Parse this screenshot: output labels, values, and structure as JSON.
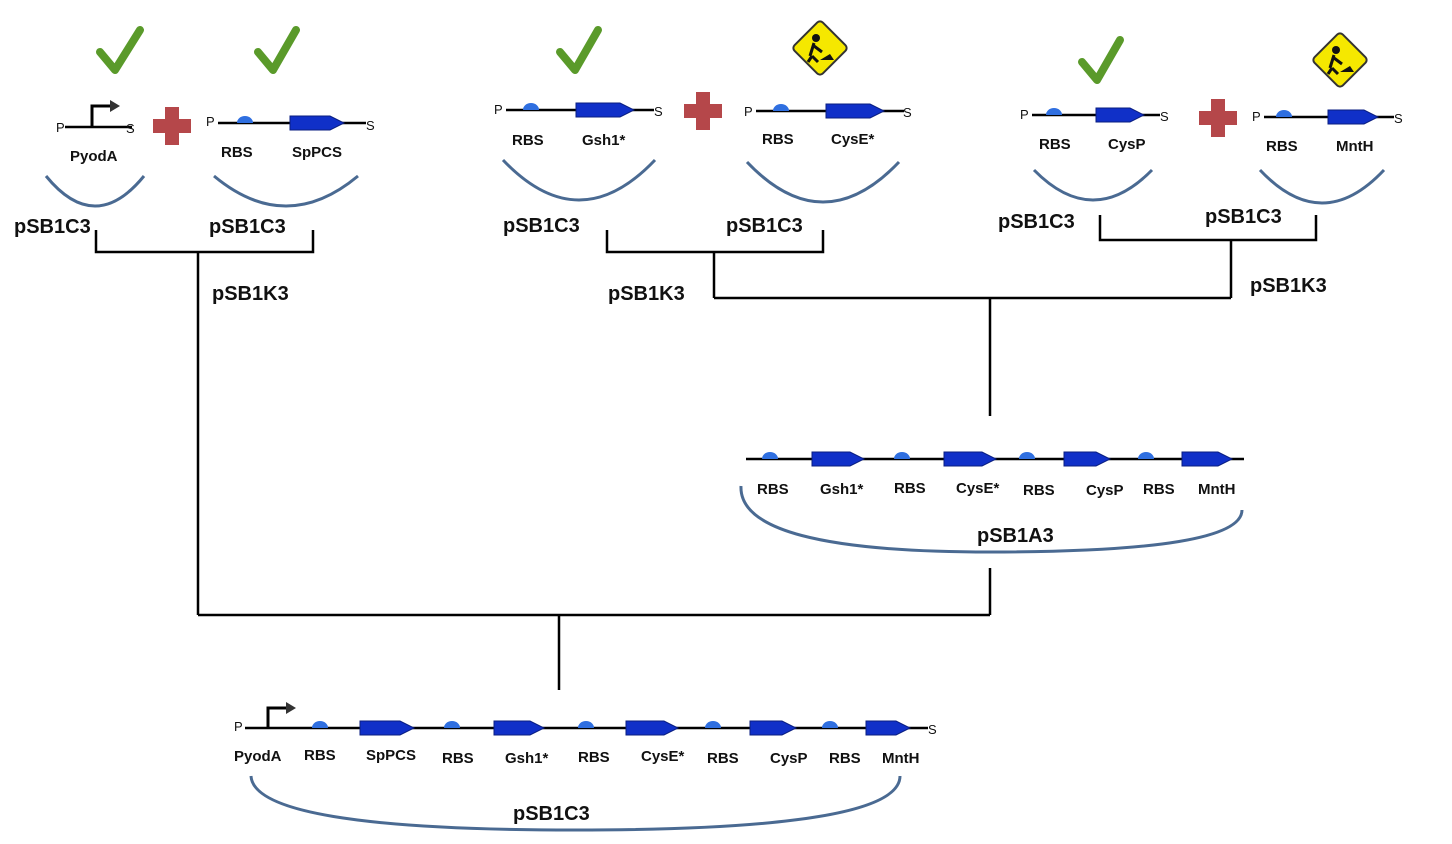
{
  "plasmids": {
    "pSB1C3": "pSB1C3",
    "pSB1K3": "pSB1K3",
    "pSB1A3": "pSB1A3"
  },
  "prefix_letter": "P",
  "suffix_letter": "S",
  "parts": {
    "pyodA": "PyodA",
    "rbs": "RBS",
    "sppcs": "SpPCS",
    "gsh1": "Gsh1*",
    "cyse": "CysE*",
    "cysp": "CysP",
    "mnth": "MntH"
  },
  "status": {
    "done_color": "#5a9a2a",
    "wip_color": "#f5e800",
    "done_icon": "check-icon",
    "wip_icon": "under-construction-icon"
  },
  "colors": {
    "cds": "#1030c8",
    "rbs": "#2f6fe0",
    "plus": "#b5474a",
    "plasmid_arc": "#4a6a92"
  }
}
